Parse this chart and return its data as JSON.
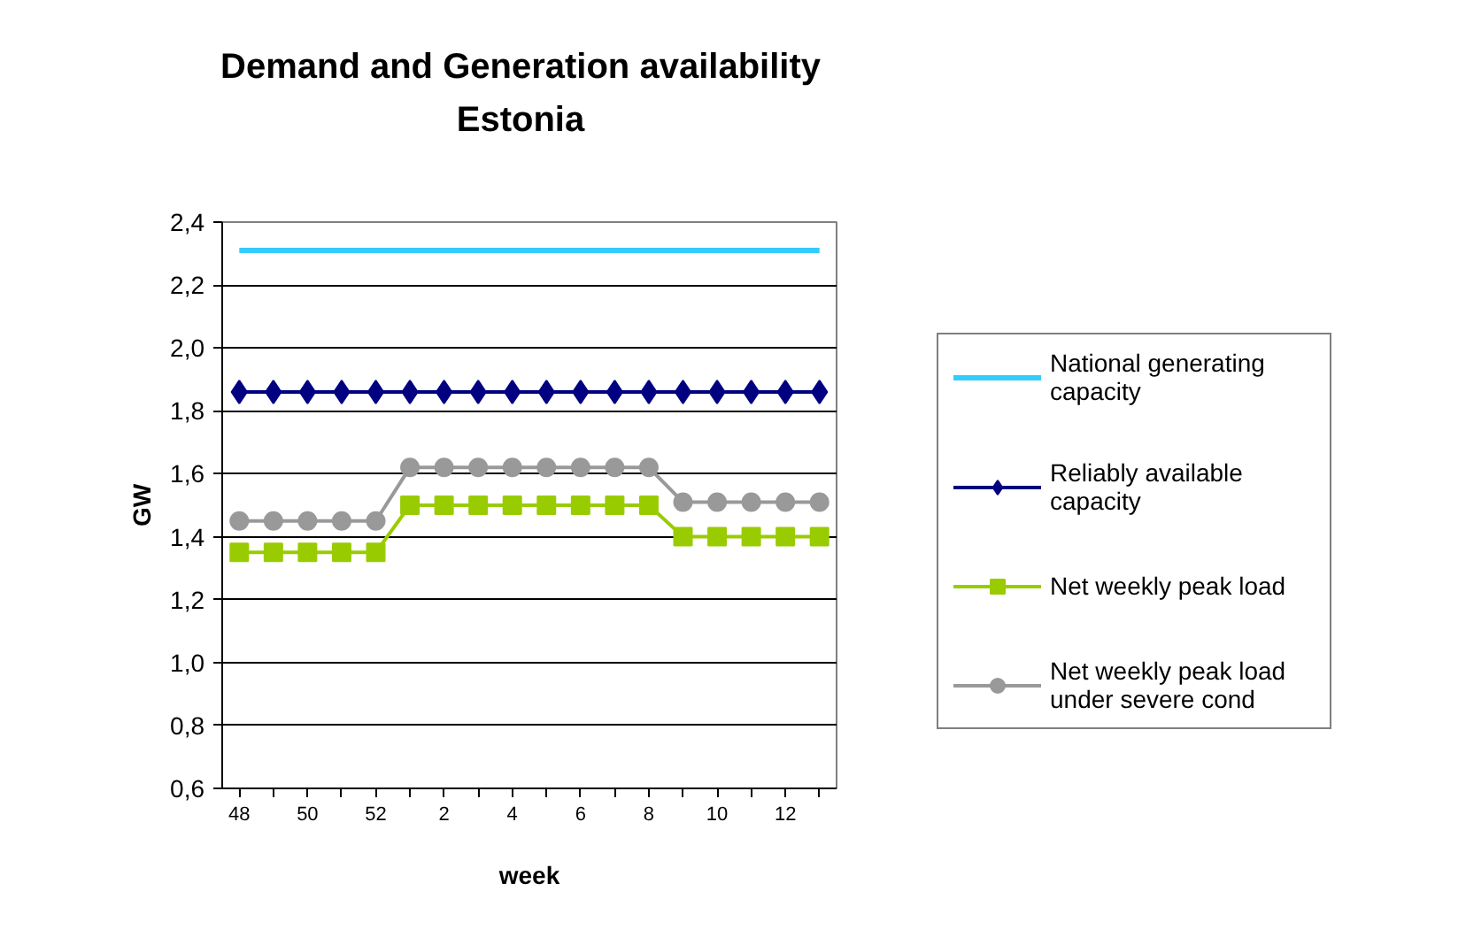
{
  "chart_data": {
    "type": "line",
    "title": "Demand and Generation availability\nEstonia",
    "xlabel": "week",
    "ylabel": "GW",
    "categories": [
      "48",
      null,
      "50",
      null,
      "52",
      null,
      "2",
      null,
      "4",
      null,
      "6",
      null,
      "8",
      null,
      "10",
      null,
      "12",
      null
    ],
    "series": [
      {
        "name": "National generating capacity",
        "color": "#33ccff",
        "marker": "none",
        "values": [
          2.31,
          2.31,
          2.31,
          2.31,
          2.31,
          2.31,
          2.31,
          2.31,
          2.31,
          2.31,
          2.31,
          2.31,
          2.31,
          2.31,
          2.31,
          2.31,
          2.31,
          2.31
        ]
      },
      {
        "name": "Reliably available capacity",
        "color": "#000080",
        "marker": "diamond",
        "values": [
          1.86,
          1.86,
          1.86,
          1.86,
          1.86,
          1.86,
          1.86,
          1.86,
          1.86,
          1.86,
          1.86,
          1.86,
          1.86,
          1.86,
          1.86,
          1.86,
          1.86,
          1.86
        ]
      },
      {
        "name": "Net weekly peak load",
        "color": "#99cc00",
        "marker": "square",
        "values": [
          1.35,
          1.35,
          1.35,
          1.35,
          1.35,
          1.5,
          1.5,
          1.5,
          1.5,
          1.5,
          1.5,
          1.5,
          1.5,
          1.4,
          1.4,
          1.4,
          1.4,
          1.4
        ]
      },
      {
        "name": "Net weekly peak load under severe cond",
        "color": "#999999",
        "marker": "circle",
        "values": [
          1.45,
          1.45,
          1.45,
          1.45,
          1.45,
          1.62,
          1.62,
          1.62,
          1.62,
          1.62,
          1.62,
          1.62,
          1.62,
          1.51,
          1.51,
          1.51,
          1.51,
          1.51
        ]
      }
    ],
    "ylim": [
      0.6,
      2.4
    ],
    "yticks": [
      {
        "value": 0.6,
        "label": "0,6"
      },
      {
        "value": 0.8,
        "label": "0,8"
      },
      {
        "value": 1.0,
        "label": "1,0"
      },
      {
        "value": 1.2,
        "label": "1,2"
      },
      {
        "value": 1.4,
        "label": "1,4"
      },
      {
        "value": 1.6,
        "label": "1,6"
      },
      {
        "value": 1.8,
        "label": "1,8"
      },
      {
        "value": 2.0,
        "label": "2,0"
      },
      {
        "value": 2.2,
        "label": "2,2"
      },
      {
        "value": 2.4,
        "label": "2,4"
      }
    ],
    "grid": "y",
    "legend": "right",
    "line_style": "solid"
  }
}
